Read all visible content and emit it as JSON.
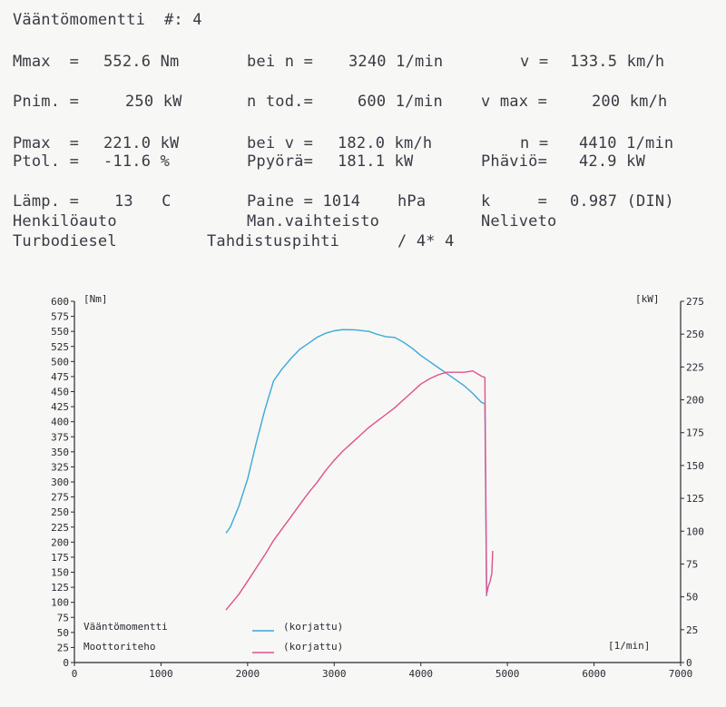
{
  "report": {
    "title": "Vääntömomentti  #: 4",
    "row1": {
      "c1_label": "Mmax  =",
      "c1_value": "552.6 Nm",
      "c2_label": "bei n =",
      "c2_value": "3240 1/min",
      "c3_label": "v =",
      "c3_value": "133.5 km/h"
    },
    "row2": {
      "c1_label": "Pnim. =",
      "c1_value": "250 kW",
      "c2_label": "n tod.=",
      "c2_value": "600 1/min",
      "c3_label": "v max =",
      "c3_value": "200 km/h"
    },
    "row3": {
      "c1_label": "Pmax  =",
      "c1_value": "221.0 kW",
      "c2_label": "bei v =",
      "c2_value": "182.0 km/h",
      "c3_label": "n =",
      "c3_value": "4410 1/min"
    },
    "row4": {
      "c1_label": "Ptol. =",
      "c1_value": "-11.6 %",
      "c2_label": "Ppyörä=",
      "c2_value": "181.1 kW",
      "c3_label": "Phäviö=",
      "c3_value": "42.9 kW"
    },
    "row5": {
      "c1_label": "Lämp. =",
      "c1_value": "13   C",
      "c2_label": "Paine = 1014",
      "c2_value": "hPa",
      "c3_label": "k     =",
      "c3_value": "0.987 (DIN)"
    },
    "row6": {
      "c1": "Henkilöauto",
      "c2": "Man.vaihteisto",
      "c3": "Neliveto"
    },
    "row7": {
      "c1": "Turbodiesel",
      "c2": "Tahdistuspihti",
      "c3": "/ 4* 4"
    }
  },
  "chart_data": {
    "type": "line",
    "xlabel": "[1/min]",
    "ylabel_left": "[Nm]",
    "ylabel_right": "[kW]",
    "xlim": [
      0,
      7000
    ],
    "ylim_left": [
      0,
      600
    ],
    "ylim_right": [
      0,
      275
    ],
    "x_ticks": [
      "0",
      "1000",
      "2000",
      "3000",
      "4000",
      "5000",
      "6000",
      "7000"
    ],
    "y_left_ticks": [
      "0",
      "25",
      "50",
      "75",
      "100",
      "125",
      "150",
      "175",
      "200",
      "225",
      "250",
      "275",
      "300",
      "325",
      "350",
      "375",
      "400",
      "425",
      "450",
      "475",
      "500",
      "525",
      "550",
      "575",
      "600"
    ],
    "y_right_ticks": [
      "0",
      "25",
      "50",
      "75",
      "100",
      "125",
      "150",
      "175",
      "200",
      "225",
      "250",
      "275"
    ],
    "legend": {
      "placement": "bottom-left"
    },
    "colors": {
      "torque": "#3aa9d9",
      "power": "#e0508f"
    },
    "series": [
      {
        "name": "Vääntömomentti",
        "legend_note": "(korjattu)",
        "axis": "left",
        "x": [
          1750,
          1800,
          1900,
          2000,
          2100,
          2200,
          2300,
          2400,
          2500,
          2600,
          2700,
          2800,
          2900,
          3000,
          3100,
          3240,
          3400,
          3500,
          3600,
          3700,
          3800,
          3900,
          4000,
          4100,
          4200,
          4300,
          4400,
          4500,
          4600,
          4700,
          4740,
          4760
        ],
        "y": [
          215,
          225,
          260,
          305,
          365,
          420,
          468,
          488,
          505,
          520,
          530,
          540,
          547,
          551,
          553,
          552.6,
          550,
          545,
          541,
          540,
          532,
          522,
          510,
          500,
          490,
          480,
          470,
          460,
          447,
          432,
          430,
          110
        ]
      },
      {
        "name": "Moottoriteho",
        "legend_note": "(korjattu)",
        "axis": "right",
        "x": [
          1750,
          1800,
          1900,
          2000,
          2100,
          2200,
          2300,
          2400,
          2500,
          2600,
          2700,
          2800,
          2900,
          3000,
          3100,
          3200,
          3300,
          3400,
          3500,
          3600,
          3700,
          3800,
          3900,
          4000,
          4100,
          4200,
          4300,
          4400,
          4500,
          4600,
          4700,
          4740,
          4760,
          4780,
          4800,
          4820,
          4830
        ],
        "y": [
          40,
          44,
          52,
          62,
          72,
          82,
          93,
          102,
          111,
          120,
          129,
          137,
          146,
          154,
          161,
          167,
          173,
          179,
          184,
          189,
          194,
          200,
          206,
          212,
          216,
          219,
          221,
          221,
          221,
          222,
          218,
          217,
          52,
          58,
          62,
          68,
          85
        ]
      }
    ]
  }
}
